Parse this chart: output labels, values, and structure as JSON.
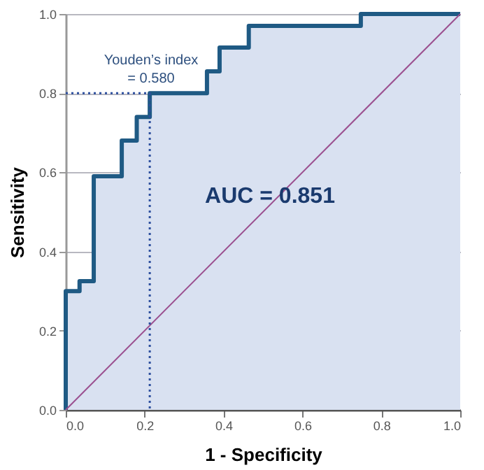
{
  "chart_data": {
    "type": "step",
    "xlabel": "1 - Specificity",
    "ylabel": "Sensitivity",
    "x": [
      0,
      0,
      0.035,
      0.071,
      0.142,
      0.18,
      0.213,
      0.358,
      0.39,
      0.464,
      0.748,
      1
    ],
    "series": [
      {
        "color": "#1f5a84",
        "values": [
          0,
          0.3,
          0.325,
          0.59,
          0.68,
          0.74,
          0.8,
          0.855,
          0.915,
          0.97,
          1,
          1
        ]
      },
      {
        "type": "line",
        "color": "#9b4f8f",
        "x": [
          0,
          1
        ],
        "values": [
          0,
          1
        ]
      },
      {
        "type": "line",
        "color": "#2d4f9e",
        "line_style": "dotted",
        "x": [
          0,
          0.213,
          0.213
        ],
        "values": [
          0.8,
          0.8,
          0
        ]
      }
    ],
    "xlim": [
      0,
      1
    ],
    "ylim": [
      0,
      1
    ],
    "xticks": [
      {
        "value": 0,
        "label": "0.0"
      },
      0.2,
      0.4,
      0.6,
      0.8,
      {
        "value": 1,
        "label": "1.0"
      }
    ],
    "yticks": [
      {
        "value": 0,
        "label": "0.0"
      },
      0.2,
      0.4,
      0.6,
      0.8,
      {
        "value": 1,
        "label": "1.0"
      }
    ],
    "grid": "y",
    "annotations": [
      "Youden’s index\n= 0.580",
      "AUC = 0.851"
    ]
  }
}
